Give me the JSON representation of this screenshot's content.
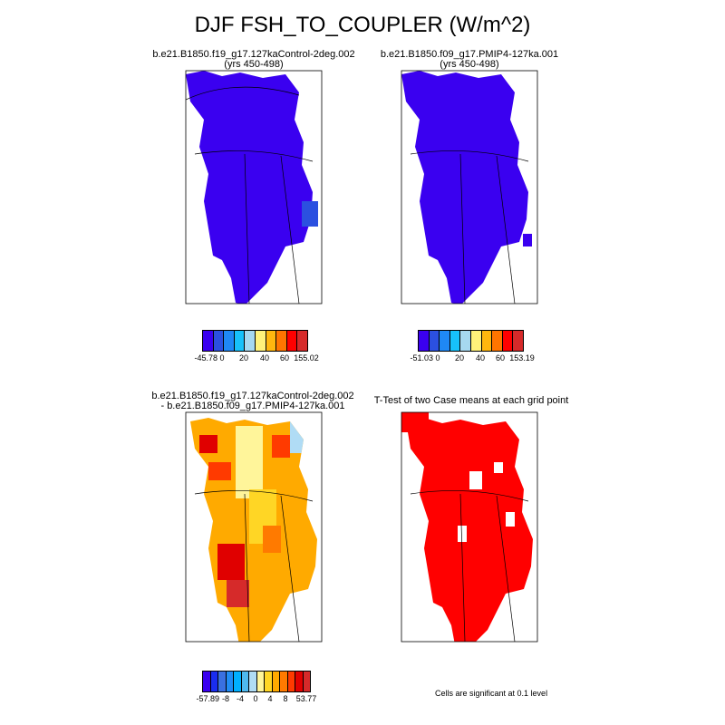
{
  "title": "DJF FSH_TO_COUPLER (W/m^2)",
  "panels": [
    {
      "title1": "b.e21.B1850.f19_g17.127kaControl-2deg.002",
      "title2": "(yrs 450-498)",
      "fill": "#3a00f0",
      "colorbar": {
        "colors": [
          "#3a00f0",
          "#2b50e0",
          "#1f88f5",
          "#17c1fa",
          "#a6d8f0",
          "#fff27a",
          "#ffb70f",
          "#ff7500",
          "#ff0000",
          "#d62a2a"
        ],
        "labels": [
          "-45.78",
          "0",
          "20",
          "40",
          "60",
          "155.02"
        ]
      }
    },
    {
      "title1": "b.e21.B1850.f09_g17.PMIP4-127ka.001",
      "title2": "(yrs 450-498)",
      "fill": "#3a00f0",
      "colorbar": {
        "colors": [
          "#3a00f0",
          "#2b50e0",
          "#1f88f5",
          "#17c1fa",
          "#a6d8f0",
          "#fff27a",
          "#ffb70f",
          "#ff7500",
          "#ff0000",
          "#d62a2a"
        ],
        "labels": [
          "-51.03",
          "0",
          "20",
          "40",
          "60",
          "153.19"
        ]
      }
    },
    {
      "title1": "b.e21.B1850.f19_g17.127kaControl-2deg.002",
      "title2": "- b.e21.B1850.f09_g17.PMIP4-127ka.001",
      "colorbar": {
        "colors": [
          "#3a00f0",
          "#1a2df0",
          "#3a70e0",
          "#1f8cf5",
          "#00b0ff",
          "#4fb9ee",
          "#b0dcf5",
          "#fff59a",
          "#ffd625",
          "#ffaa00",
          "#ff7a00",
          "#ff3a00",
          "#e00000",
          "#d62a2a"
        ],
        "labels": [
          "-57.89",
          "-8",
          "-4",
          "0",
          "4",
          "8",
          "53.77"
        ]
      }
    },
    {
      "title1": "T-Test of two Case means at each grid point",
      "fill": "#ff0000",
      "note": "Cells are significant at 0.1 level"
    }
  ]
}
